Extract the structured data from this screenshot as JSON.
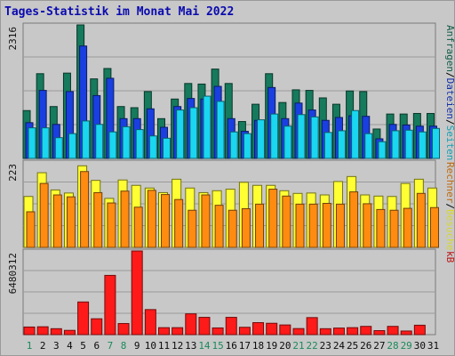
{
  "chart_data": {
    "type": "bar",
    "title": "Tages-Statistik im Monat Mai 2022",
    "categories": [
      "1",
      "2",
      "3",
      "4",
      "5",
      "6",
      "7",
      "8",
      "9",
      "10",
      "11",
      "12",
      "13",
      "14",
      "15",
      "16",
      "17",
      "18",
      "19",
      "20",
      "21",
      "22",
      "23",
      "24",
      "25",
      "26",
      "27",
      "28",
      "29",
      "30",
      "31"
    ],
    "weekend_days": [
      "1",
      "7",
      "8",
      "14",
      "15",
      "21",
      "22",
      "28",
      "29"
    ],
    "panels": [
      {
        "name": "top",
        "max_label": "2316",
        "ymax": 2316,
        "right_label_parts": [
          "Anfragen",
          "/",
          "Dateien",
          "/",
          "Seiten"
        ],
        "series": [
          {
            "name": "Anfragen",
            "color": "#167a5c",
            "values": [
              830,
              1470,
              900,
              1480,
              2316,
              1380,
              1560,
              900,
              880,
              1160,
              690,
              1030,
              1300,
              1290,
              1550,
              1300,
              640,
              940,
              1470,
              970,
              1190,
              1180,
              1050,
              940,
              1170,
              1160,
              510,
              770,
              770,
              780,
              780
            ]
          },
          {
            "name": "Dateien",
            "color": "#1a3fe0",
            "values": [
              620,
              1180,
              590,
              1160,
              1950,
              1090,
              1390,
              690,
              690,
              860,
              540,
              900,
              1040,
              1030,
              1250,
              690,
              470,
              660,
              1230,
              690,
              960,
              840,
              660,
              710,
              740,
              730,
              340,
              590,
              580,
              560,
              560
            ]
          },
          {
            "name": "Seiten",
            "color": "#1ad6f0",
            "values": [
              530,
              530,
              360,
              430,
              650,
              590,
              460,
              550,
              500,
              390,
              350,
              840,
              880,
              1080,
              990,
              460,
              430,
              670,
              770,
              560,
              760,
              720,
              450,
              480,
              830,
              430,
              290,
              480,
              490,
              460,
              520
            ]
          }
        ]
      },
      {
        "name": "middle",
        "max_label": "223",
        "ymax": 223,
        "right_label_parts": [
          "Rechner",
          "/",
          "Besuche"
        ],
        "series": [
          {
            "name": "Besuche",
            "color": "#ffff33",
            "values": [
              133,
              195,
              150,
              142,
              213,
              175,
              128,
              176,
              162,
              155,
              143,
              178,
              155,
              143,
              148,
              152,
              170,
              162,
              162,
              148,
              141,
              142,
              137,
              172,
              185,
              137,
              134,
              133,
              167,
              178,
              155
            ]
          },
          {
            "name": "Rechner",
            "color": "#ff8c10",
            "values": [
              93,
              167,
              137,
              132,
              198,
              143,
              116,
              147,
              105,
              149,
              138,
              125,
              97,
              137,
              110,
              97,
              101,
              113,
              152,
              134,
              113,
              113,
              115,
              113,
              145,
              114,
              99,
              97,
              102,
              141,
              104
            ]
          }
        ]
      },
      {
        "name": "bottom",
        "max_label": "6480312",
        "ymax": 6480312,
        "right_label_parts": [
          "kB"
        ],
        "series": [
          {
            "name": "kB",
            "color": "#ff1a1a",
            "values": [
              590000,
              610000,
              460000,
              330000,
              2530000,
              1230000,
              4590000,
              860000,
              6480312,
              1940000,
              540000,
              540000,
              1610000,
              1340000,
              520000,
              1340000,
              570000,
              930000,
              880000,
              750000,
              470000,
              1320000,
              460000,
              510000,
              540000,
              640000,
              310000,
              640000,
              280000,
              730000,
              0
            ]
          }
        ]
      }
    ],
    "colors": {
      "title": "#0a0ab0",
      "weekend": "#1a8a5a",
      "weekday": "#0a0a0a",
      "background": "#c8c8c8",
      "grid": "#9a9a9a"
    }
  }
}
